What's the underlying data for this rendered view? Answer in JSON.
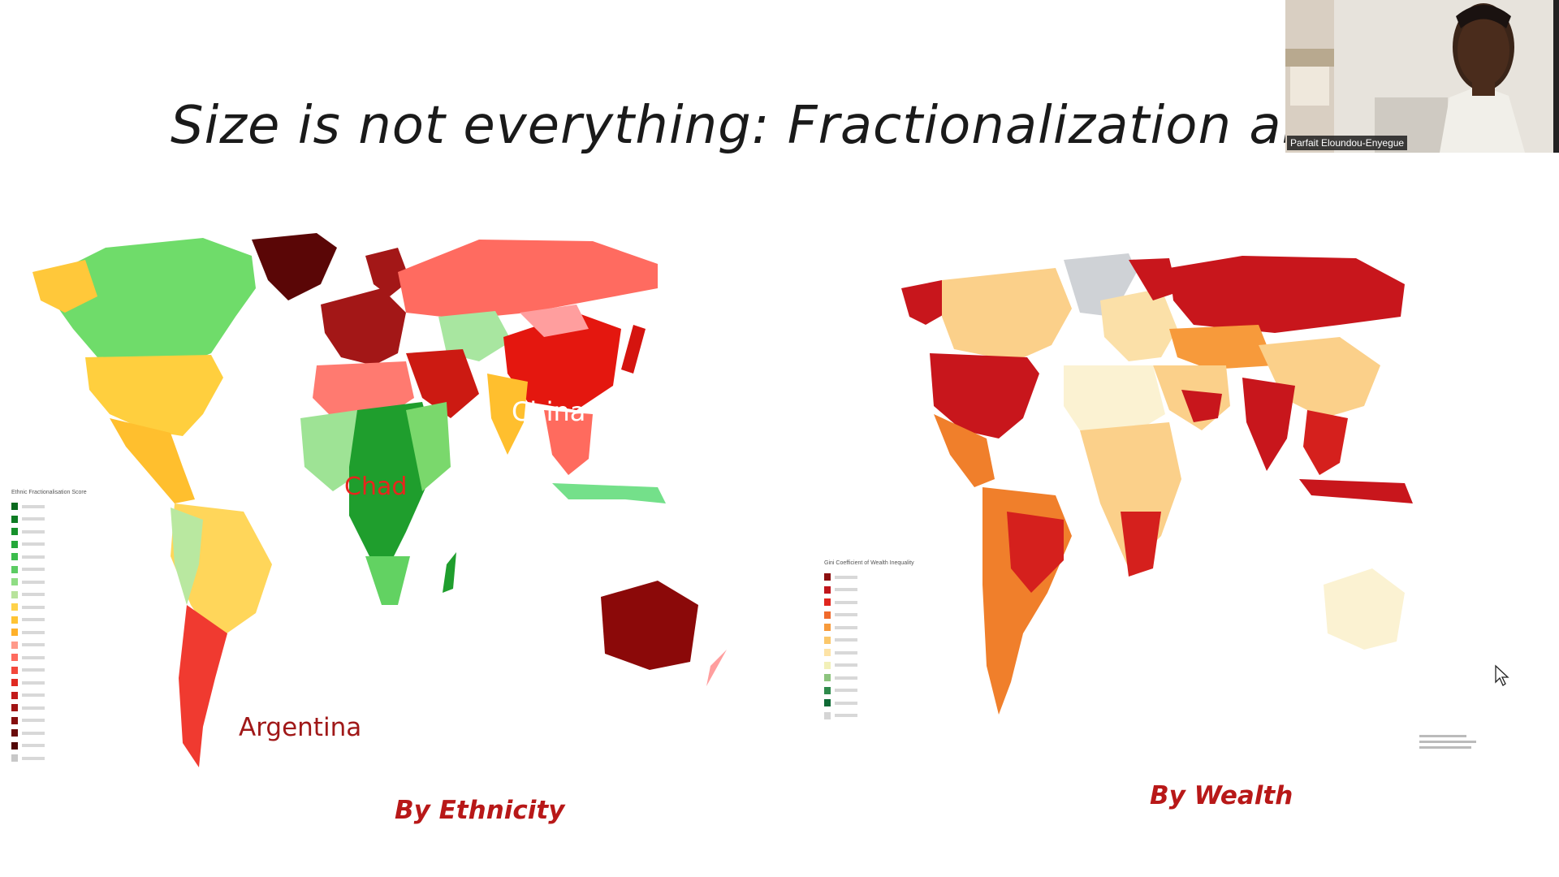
{
  "slide": {
    "title": "Size is not everything: Fractionalization also Ma"
  },
  "map_ethnicity": {
    "caption": "By Ethnicity",
    "labels": {
      "china": "China",
      "chad": "Chad",
      "argentina": "Argentina"
    },
    "legend_title": "Ethnic Fractionalisation Score",
    "legend_colors": [
      "#0b6a1f",
      "#0e7c24",
      "#17912c",
      "#24a83a",
      "#3bbc4c",
      "#5ccc63",
      "#8fdd84",
      "#b8e39c",
      "#ffd24a",
      "#ffc434",
      "#ffb12a",
      "#ff9a8a",
      "#ff6b5e",
      "#f3483c",
      "#e02a22",
      "#c21a1a",
      "#a11414",
      "#850e0e",
      "#6a0b0b",
      "#520707",
      "#c8c8c8"
    ]
  },
  "map_wealth": {
    "caption": "By Wealth",
    "legend_title": "Gini Coefficient of Wealth Inequality",
    "legend_colors": [
      "#8c1010",
      "#c0161b",
      "#e0261e",
      "#f06a2c",
      "#f79a3b",
      "#fbc76a",
      "#fde3a6",
      "#f2f0b8",
      "#8cc47e",
      "#2f8a4b",
      "#0f6a35",
      "#d5d5d5"
    ]
  },
  "webcam": {
    "name": "Parfait Eloundou-Enyegue"
  },
  "colors": {
    "caption_red": "#b81818",
    "eth_green": "#2fae3c",
    "eth_yellow": "#ffcf4d",
    "eth_salmon": "#ff7468",
    "eth_red": "#e41e18",
    "eth_dark": "#7a0d0d",
    "wealth_red": "#c8161c",
    "wealth_orange": "#f07f2b",
    "wealth_tan": "#fbd08a",
    "wealth_cream": "#fbf2d2",
    "gray": "#c8ced3"
  }
}
